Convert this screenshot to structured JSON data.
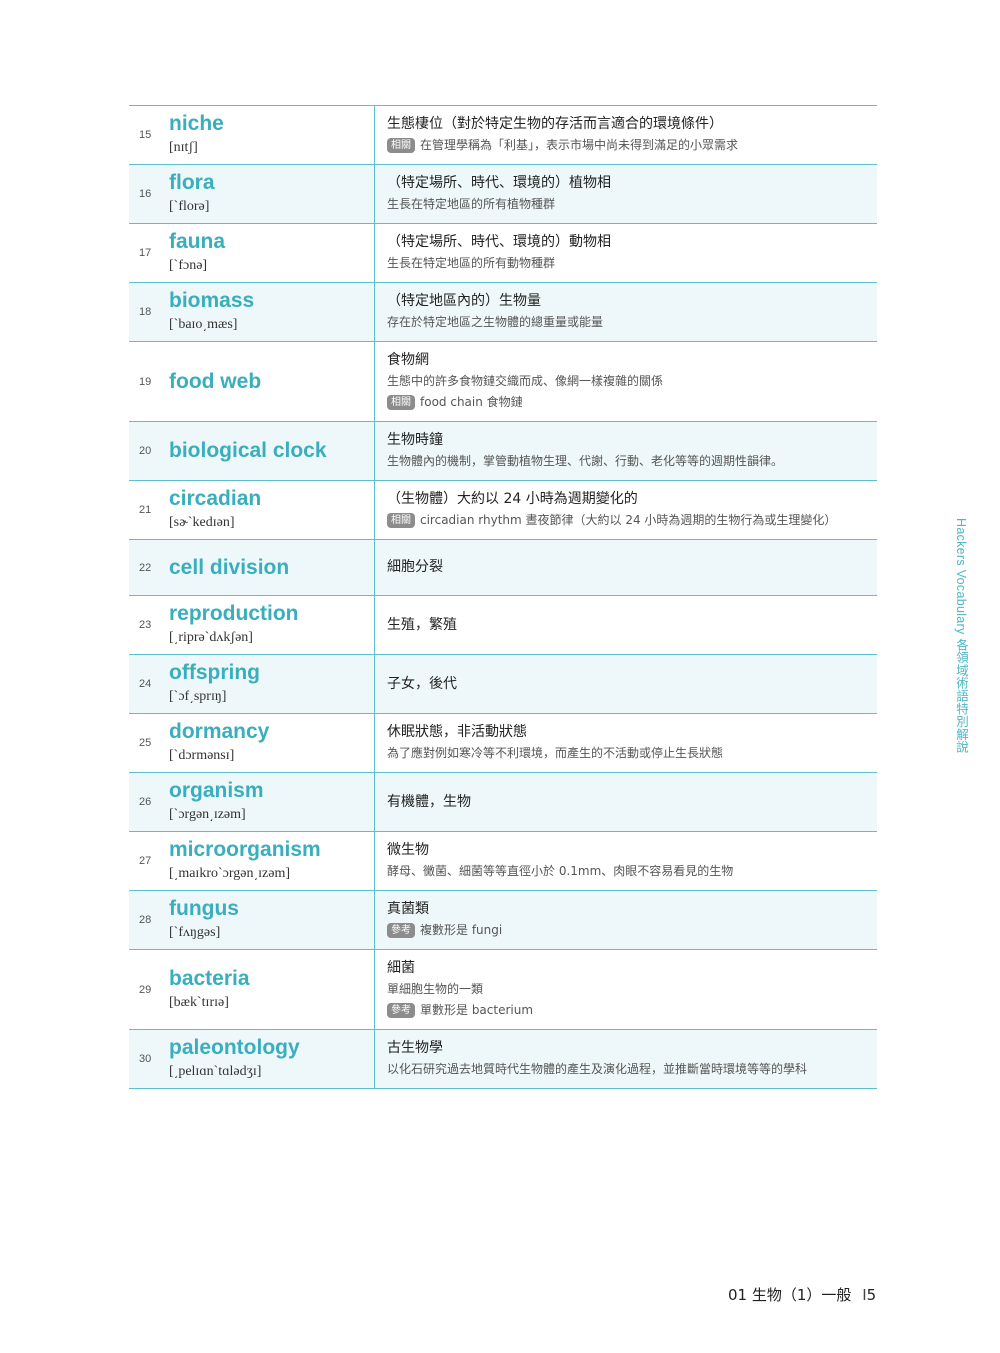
{
  "side_title": "Hackers Vocabulary 各領域術語特別解說",
  "footer": {
    "chapter": "01 生物（1）一般",
    "page": "5"
  },
  "entries": [
    {
      "num": "15",
      "word": "niche",
      "pron": "[nɪtʃ]",
      "lines": [
        {
          "kind": "main",
          "text": "生態棲位（對於特定生物的存活而言適合的環境條件）"
        },
        {
          "kind": "sub",
          "tag": "相關",
          "text": "在管理學稱為「利基」，表示市場中尚未得到滿足的小眾需求"
        }
      ]
    },
    {
      "num": "16",
      "word": "flora",
      "pron": "[`florə]",
      "lines": [
        {
          "kind": "main",
          "text": "（特定場所、時代、環境的）植物相"
        },
        {
          "kind": "sub",
          "text": "生長在特定地區的所有植物種群"
        }
      ]
    },
    {
      "num": "17",
      "word": "fauna",
      "pron": "[`fɔnə]",
      "lines": [
        {
          "kind": "main",
          "text": "（特定場所、時代、環境的）動物相"
        },
        {
          "kind": "sub",
          "text": "生長在特定地區的所有動物種群"
        }
      ]
    },
    {
      "num": "18",
      "word": "biomass",
      "pron": "[`baɪo͵mæs]",
      "lines": [
        {
          "kind": "main",
          "text": "（特定地區內的）生物量"
        },
        {
          "kind": "sub",
          "text": "存在於特定地區之生物體的總重量或能量"
        }
      ]
    },
    {
      "num": "19",
      "word": "food web",
      "pron": "",
      "lines": [
        {
          "kind": "main",
          "text": "食物網"
        },
        {
          "kind": "sub",
          "text": "生態中的許多食物鏈交織而成、像網一樣複雜的關係"
        },
        {
          "kind": "sub",
          "tag": "相關",
          "text": "food chain 食物鏈"
        }
      ]
    },
    {
      "num": "20",
      "word": "biological clock",
      "pron": "",
      "lines": [
        {
          "kind": "main",
          "text": "生物時鐘"
        },
        {
          "kind": "sub",
          "text": "生物體內的機制，掌管動植物生理、代謝、行動、老化等等的週期性韻律。"
        }
      ]
    },
    {
      "num": "21",
      "word": "circadian",
      "pron": "[sɚ`kedɪən]",
      "lines": [
        {
          "kind": "main",
          "text": "（生物體）大約以 24 小時為週期變化的"
        },
        {
          "kind": "sub",
          "tag": "相關",
          "text": "circadian rhythm 晝夜節律（大約以 24 小時為週期的生物行為或生理變化）"
        }
      ]
    },
    {
      "num": "22",
      "word": "cell division",
      "pron": "",
      "lines": [
        {
          "kind": "main",
          "text": "細胞分裂"
        }
      ]
    },
    {
      "num": "23",
      "word": "reproduction",
      "pron": "[͵riprə`dʌkʃən]",
      "lines": [
        {
          "kind": "main",
          "text": "生殖，繁殖"
        }
      ]
    },
    {
      "num": "24",
      "word": "offspring",
      "pron": "[`ɔf͵sprɪŋ]",
      "lines": [
        {
          "kind": "main",
          "text": "子女，後代"
        }
      ]
    },
    {
      "num": "25",
      "word": "dormancy",
      "pron": "[`dɔrmənsɪ]",
      "lines": [
        {
          "kind": "main",
          "text": "休眠狀態，非活動狀態"
        },
        {
          "kind": "sub",
          "text": "為了應對例如寒冷等不利環境，而產生的不活動或停止生長狀態"
        }
      ]
    },
    {
      "num": "26",
      "word": "organism",
      "pron": "[`ɔrgən͵ɪzəm]",
      "lines": [
        {
          "kind": "main",
          "text": "有機體，生物"
        }
      ]
    },
    {
      "num": "27",
      "word": "microorganism",
      "pron": "[͵maɪkro`ɔrgən͵ɪzəm]",
      "lines": [
        {
          "kind": "main",
          "text": "微生物"
        },
        {
          "kind": "sub",
          "text": "酵母、黴菌、細菌等等直徑小於 0.1mm、肉眼不容易看見的生物"
        }
      ]
    },
    {
      "num": "28",
      "word": "fungus",
      "pron": "[`fʌŋgəs]",
      "lines": [
        {
          "kind": "main",
          "text": "真菌類"
        },
        {
          "kind": "sub",
          "tag": "參考",
          "text": "複數形是 fungi"
        }
      ]
    },
    {
      "num": "29",
      "word": "bacteria",
      "pron": "[bæk`tɪrɪə]",
      "lines": [
        {
          "kind": "main",
          "text": "細菌"
        },
        {
          "kind": "sub",
          "text": "單細胞生物的一類"
        },
        {
          "kind": "sub",
          "tag": "參考",
          "text": "單數形是 bacterium"
        }
      ]
    },
    {
      "num": "30",
      "word": "paleontology",
      "pron": "[͵pelɪɑn`tɑlədʒɪ]",
      "lines": [
        {
          "kind": "main",
          "text": "古生物學"
        },
        {
          "kind": "sub",
          "text": "以化石研究過去地質時代生物體的產生及演化過程，並推斷當時環境等等的學科"
        }
      ]
    }
  ]
}
